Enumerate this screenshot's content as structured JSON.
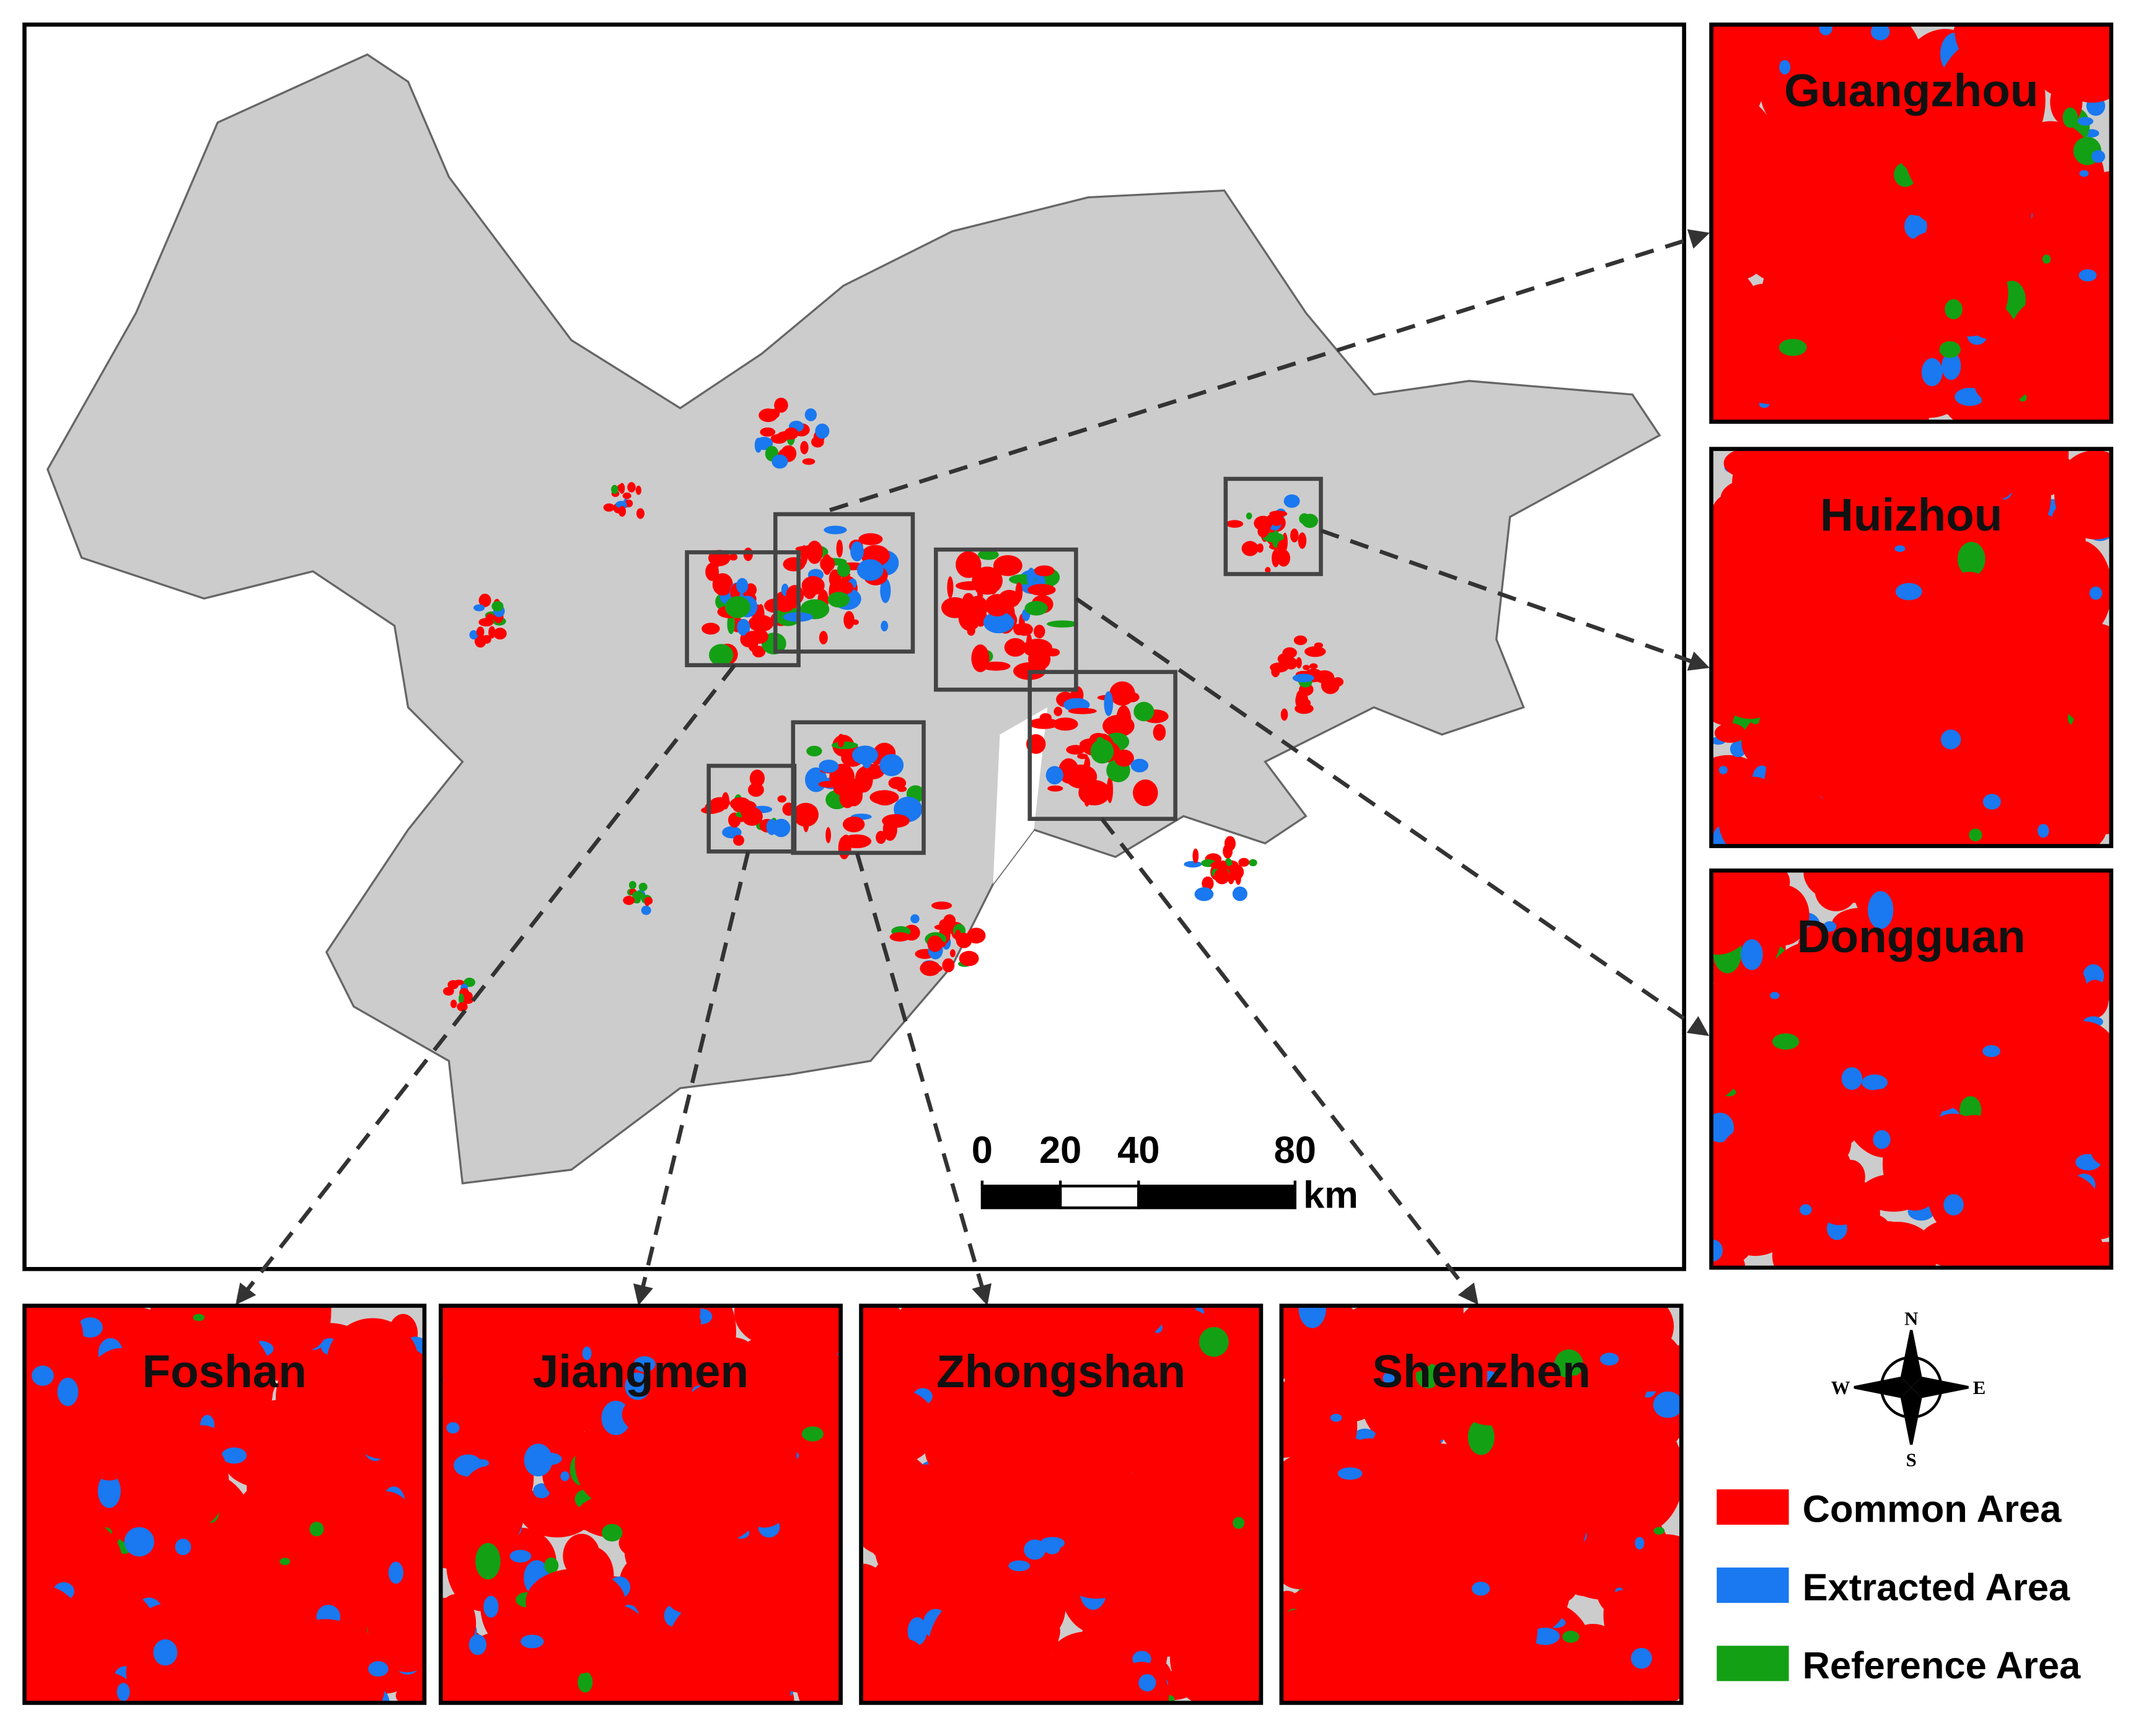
{
  "main_map": {
    "scale_bar": {
      "ticks": [
        0,
        20,
        40,
        80
      ],
      "unit": "km"
    }
  },
  "insets": [
    {
      "label": "Guangzhou"
    },
    {
      "label": "Huizhou"
    },
    {
      "label": "Dongguan"
    },
    {
      "label": "Foshan"
    },
    {
      "label": "Jiangmen"
    },
    {
      "label": "Zhongshan"
    },
    {
      "label": "Shenzhen"
    }
  ],
  "compass": {
    "n": "N",
    "e": "E",
    "s": "S",
    "w": "W"
  },
  "legend": [
    {
      "label": "Common Area",
      "color": "#ff0000"
    },
    {
      "label": "Extracted Area",
      "color": "#1a78f0"
    },
    {
      "label": "Reference Area",
      "color": "#14a014"
    }
  ]
}
